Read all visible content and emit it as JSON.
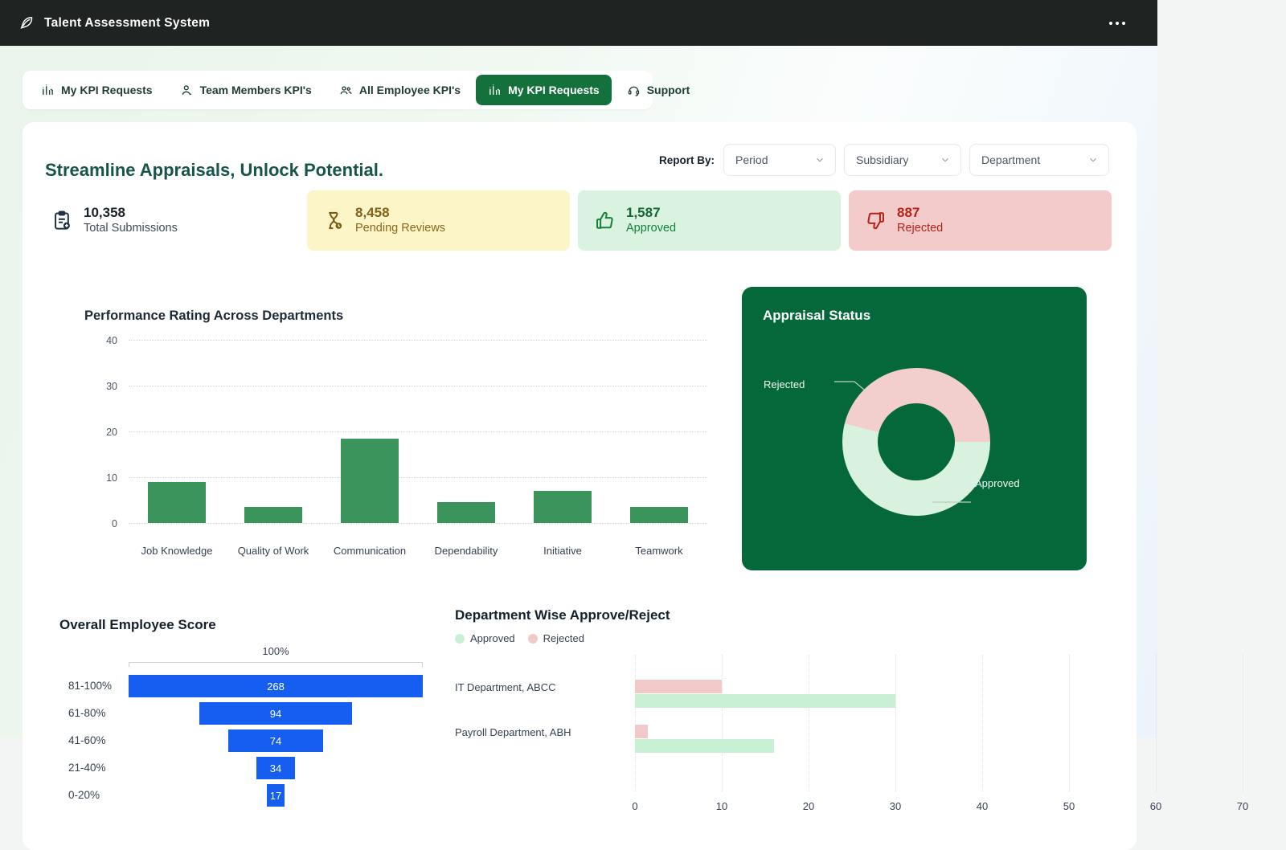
{
  "header": {
    "title": "Talent Assessment System"
  },
  "tabs": [
    {
      "label": "My KPI Requests",
      "icon": "activity-icon",
      "active": false
    },
    {
      "label": "Team Members KPI's",
      "icon": "user-icon",
      "active": false
    },
    {
      "label": "All Employee KPI's",
      "icon": "users-icon",
      "active": false
    },
    {
      "label": "My KPI Requests",
      "icon": "activity-icon",
      "active": true
    },
    {
      "label": "Support",
      "icon": "headset-icon",
      "active": false
    }
  ],
  "page": {
    "heading": "Streamline Appraisals, Unlock Potential.",
    "report_by_label": "Report By:"
  },
  "filters": [
    "Period",
    "Subsidiary",
    "Department"
  ],
  "stats": [
    {
      "value": "10,358",
      "label": "Total Submissions",
      "icon": "clipboard-plus-icon",
      "bg": "transparent",
      "value_color": "#1a222b",
      "label_color": "#3f4956",
      "icon_color": "#223043"
    },
    {
      "value": "8,458",
      "label": "Pending Reviews",
      "icon": "hourglass-icon",
      "bg": "#fcf5c8",
      "value_color": "#82611a",
      "label_color": "#8a671c",
      "icon_color": "#7c5c15"
    },
    {
      "value": "1,587",
      "label": "Approved",
      "icon": "thumbs-up-icon",
      "bg": "#d9f3e0",
      "value_color": "#166534",
      "label_color": "#15803d",
      "icon_color": "#15803d"
    },
    {
      "value": "887",
      "label": "Rejected",
      "icon": "thumbs-down-icon",
      "bg": "#f2cbca",
      "value_color": "#b42318",
      "label_color": "#b42318",
      "icon_color": "#b42318"
    }
  ],
  "chart_data": [
    {
      "id": "performance_rating",
      "type": "bar",
      "title": "Performance Rating Across Departments",
      "categories": [
        "Job Knowledge",
        "Quality of Work",
        "Communication",
        "Dependability",
        "Initiative",
        "Teamwork"
      ],
      "values": [
        9,
        3.5,
        18.5,
        4.5,
        7,
        3.5
      ],
      "ylim": [
        0,
        40
      ],
      "yticks": [
        0,
        10,
        20,
        30,
        40
      ],
      "bar_color": "#3a945c",
      "grid": "dotted-horizontal",
      "legend_position": "none"
    },
    {
      "id": "appraisal_status",
      "type": "pie",
      "variant": "donut",
      "title": "Appraisal Status",
      "slices": [
        {
          "label": "Approved",
          "pct": 54,
          "color": "#d8f2df"
        },
        {
          "label": "Rejected",
          "pct": 46,
          "color": "#f2cecd"
        }
      ],
      "card_bg": "#05683a"
    },
    {
      "id": "overall_employee_score",
      "type": "bar",
      "variant": "funnel",
      "title": "Overall Employee Score",
      "top_label": "100%",
      "categories": [
        "81-100%",
        "61-80%",
        "41-60%",
        "21-40%",
        "0-20%"
      ],
      "values": [
        268,
        94,
        74,
        34,
        17
      ],
      "bar_width_pct": [
        100,
        52,
        32,
        13,
        6
      ],
      "bar_color": "#155eef"
    },
    {
      "id": "department_approve_reject",
      "type": "bar",
      "variant": "horizontal-grouped",
      "title": "Department Wise Approve/Reject",
      "categories": [
        "IT Department, ABCC",
        "Payroll Department, ABH"
      ],
      "series": [
        {
          "name": "Approved",
          "color": "#c9efd4",
          "values": [
            30,
            16
          ]
        },
        {
          "name": "Rejected",
          "color": "#f0c9c8",
          "values": [
            10,
            1.5
          ]
        }
      ],
      "xlim": [
        0,
        70
      ],
      "xticks": [
        0,
        10,
        20,
        30,
        40,
        50,
        60,
        70
      ],
      "legend_position": "top-left",
      "grid": "dotted-vertical"
    }
  ]
}
